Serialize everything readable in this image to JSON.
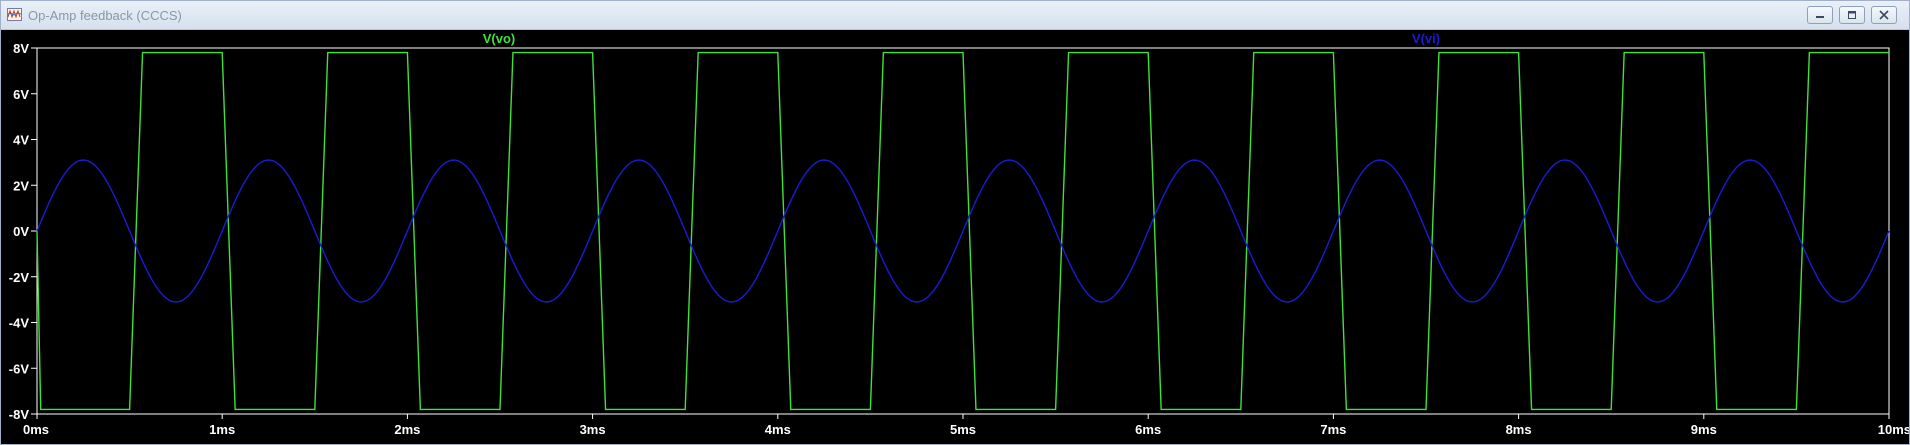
{
  "window": {
    "title": "Op-Amp feedback (CCCS)",
    "minimize_icon": "minimize-icon",
    "restore_icon": "restore-icon",
    "close_icon": "close-icon"
  },
  "colors": {
    "background": "#000000",
    "axis": "#ffffff",
    "trace_vo": "#3fe23a",
    "trace_vi": "#1b1bd6",
    "window_frame": "#dbe4f0"
  },
  "chart_data": {
    "type": "line",
    "xlim": [
      0,
      10
    ],
    "ylim": [
      -8,
      8
    ],
    "x_unit": "ms",
    "y_unit": "V",
    "x_tick_labels": [
      "0ms",
      "1ms",
      "2ms",
      "3ms",
      "4ms",
      "5ms",
      "6ms",
      "7ms",
      "8ms",
      "9ms",
      "10ms"
    ],
    "y_tick_labels": [
      "8V",
      "6V",
      "4V",
      "2V",
      "0V",
      "-2V",
      "-4V",
      "-6V",
      "-8V"
    ],
    "grid": false,
    "legend": [
      "V(vo)",
      "V(vi)"
    ],
    "series": [
      {
        "name": "V(vo)",
        "color": "#3fe23a",
        "shape": "clipped square wave",
        "period_ms": 1.0,
        "high": 7.8,
        "low": -7.8,
        "x": [
          0,
          0.02,
          0.5,
          0.57,
          1.0,
          1.07,
          1.5,
          1.57,
          2.0,
          2.07,
          2.5,
          2.57,
          3.0,
          3.07,
          3.5,
          3.57,
          4.0,
          4.07,
          4.5,
          4.57,
          5.0,
          5.07,
          5.5,
          5.57,
          6.0,
          6.07,
          6.5,
          6.57,
          7.0,
          7.07,
          7.5,
          7.57,
          8.0,
          8.07,
          8.5,
          8.57,
          9.0,
          9.07,
          9.5,
          9.57,
          10.0
        ],
        "y": [
          0,
          -7.8,
          -7.8,
          7.8,
          7.8,
          -7.8,
          -7.8,
          7.8,
          7.8,
          -7.8,
          -7.8,
          7.8,
          7.8,
          -7.8,
          -7.8,
          7.8,
          7.8,
          -7.8,
          -7.8,
          7.8,
          7.8,
          -7.8,
          -7.8,
          7.8,
          7.8,
          -7.8,
          -7.8,
          7.8,
          7.8,
          -7.8,
          -7.8,
          7.8,
          7.8,
          -7.8,
          -7.8,
          7.8,
          7.8,
          -7.8,
          -7.8,
          7.8,
          7.8
        ]
      },
      {
        "name": "V(vi)",
        "color": "#1b1bd6",
        "shape": "sine",
        "amplitude": 3.1,
        "frequency_khz": 1.0,
        "period_ms": 1.0,
        "offset": 0
      }
    ]
  }
}
